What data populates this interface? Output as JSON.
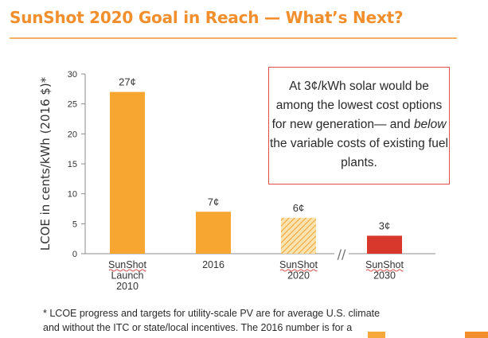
{
  "slide": {
    "title": "SunShot 2020 Goal in Reach — What’s Next?",
    "callout": {
      "pre": "At 3¢/kWh solar would be among the lowest cost options for new generation— and ",
      "emph": "below",
      "post": " the variable costs of existing fuel plants."
    },
    "footnote_lines": [
      "* LCOE progress and targets for utility-scale PV are for average U.S. climate",
      "and without the ITC or state/local incentives. The 2016 number is for a"
    ]
  },
  "chart_data": {
    "type": "bar",
    "ylabel": "LCOE in cents/kWh (2016 $)*",
    "ylim": [
      0,
      30
    ],
    "yticks": [
      0,
      5,
      10,
      15,
      20,
      25,
      30
    ],
    "categories": [
      {
        "lines": [
          "SunShot",
          "Launch",
          "2010"
        ]
      },
      {
        "lines": [
          "2016"
        ]
      },
      {
        "lines": [
          "SunShot",
          "2020"
        ]
      },
      {
        "lines": [
          "SunShot",
          "2030"
        ]
      }
    ],
    "values": [
      27,
      7,
      6,
      3
    ],
    "data_labels": [
      "27¢",
      "7¢",
      "6¢",
      "3¢"
    ],
    "bar_styles": [
      "solid",
      "solid",
      "hatched",
      "solid"
    ],
    "bar_colors": [
      "#f7a631",
      "#f7a631",
      "#f7c96a",
      "#d7382b"
    ],
    "axis_break": "//"
  }
}
